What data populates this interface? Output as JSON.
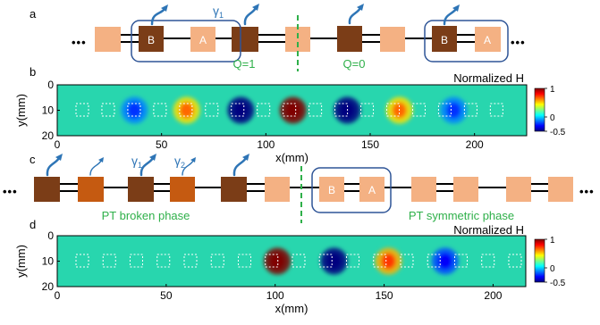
{
  "panels": {
    "a": {
      "letter": "a",
      "dots": "•••",
      "site_labels": [
        "B",
        "A",
        "B",
        "A"
      ],
      "gamma_label": "γ",
      "gamma_sub": "1",
      "q_left": "Q=1",
      "q_right": "Q=0"
    },
    "b": {
      "letter": "b",
      "title": "Normalized H",
      "ylabel": "y(mm)",
      "xlabel": "x(mm)",
      "xticks": [
        "0",
        "50",
        "100",
        "150",
        "200"
      ],
      "yticks": [
        "0",
        "10",
        "20"
      ],
      "colorbar_ticks": [
        "1",
        "0",
        "-0.5"
      ]
    },
    "c": {
      "letter": "c",
      "dots": "•••",
      "site_labels": [
        "B",
        "A"
      ],
      "gamma1_label": "γ",
      "gamma1_sub": "1",
      "gamma2_label": "γ",
      "gamma2_sub": "2",
      "left_phase": "PT broken phase",
      "right_phase": "PT symmetric phase"
    },
    "d": {
      "letter": "d",
      "title": "Normalized H",
      "ylabel": "y(mm)",
      "xlabel": "x(mm)",
      "xticks": [
        "0",
        "50",
        "100",
        "150",
        "200"
      ],
      "yticks": [
        "0",
        "10",
        "20"
      ],
      "colorbar_ticks": [
        "1",
        "0",
        "-0.5"
      ]
    }
  },
  "colors": {
    "gain_dark": "#7b3d17",
    "gain_medium": "#c55a11",
    "neutral_light": "#f4b183",
    "annotation_green": "#2fb04a",
    "arrow_blue": "#2e75b6",
    "frame_blue": "#2f5597",
    "map_background": "#28d6ae"
  },
  "chart_data": [
    {
      "type": "heatmap",
      "panel": "b",
      "title": "Normalized H",
      "xlabel": "x(mm)",
      "ylabel": "y(mm)",
      "xlim": [
        0,
        225
      ],
      "ylim": [
        0,
        20
      ],
      "clim": [
        -0.5,
        1
      ],
      "colormap": "jet",
      "hotspots": [
        {
          "x": 37,
          "y": 10,
          "value": -0.12
        },
        {
          "x": 62,
          "y": 10,
          "value": 0.48
        },
        {
          "x": 88,
          "y": 10,
          "value": -0.5
        },
        {
          "x": 113,
          "y": 10,
          "value": 1.0
        },
        {
          "x": 139,
          "y": 10,
          "value": -0.5
        },
        {
          "x": 164,
          "y": 10,
          "value": 0.48
        },
        {
          "x": 190,
          "y": 10,
          "value": -0.12
        }
      ]
    },
    {
      "type": "heatmap",
      "panel": "d",
      "title": "Normalized H",
      "xlabel": "x(mm)",
      "ylabel": "y(mm)",
      "xlim": [
        0,
        215
      ],
      "ylim": [
        0,
        20
      ],
      "clim": [
        -0.5,
        1
      ],
      "colormap": "jet",
      "hotspots": [
        {
          "x": 101,
          "y": 10,
          "value": 1.0
        },
        {
          "x": 127,
          "y": 10,
          "value": -0.5
        },
        {
          "x": 152,
          "y": 10,
          "value": 0.55
        },
        {
          "x": 178,
          "y": 10,
          "value": -0.2
        }
      ]
    }
  ]
}
